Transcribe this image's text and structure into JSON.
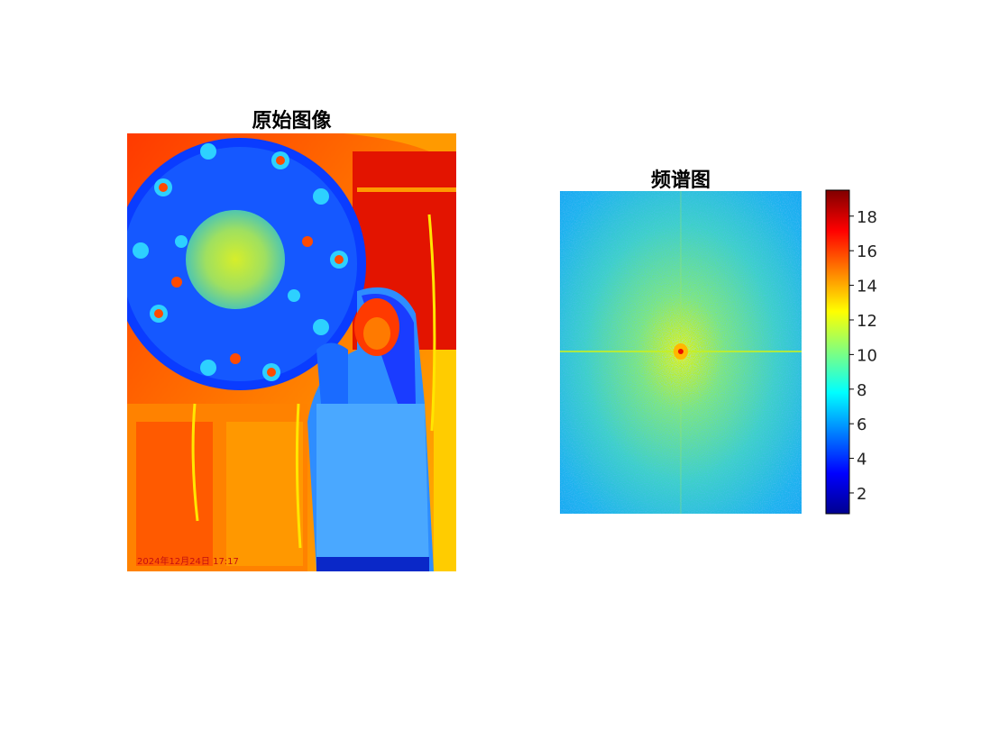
{
  "figure": {
    "left_title": "原始图像",
    "right_title": "频谱图",
    "timestamp": "2024年12月24日 17:17"
  },
  "chart_data": [
    {
      "type": "heatmap",
      "title": "原始图像",
      "colormap": "jet",
      "axes_visible": false
    },
    {
      "type": "heatmap",
      "title": "频谱图",
      "colormap": "jet",
      "axes_visible": false,
      "colorbar": {
        "range": [
          0.8,
          19.5
        ],
        "ticks": [
          2,
          4,
          6,
          8,
          10,
          12,
          14,
          16,
          18
        ],
        "tick_labels": [
          "2",
          "4",
          "6",
          "8",
          "10",
          "12",
          "14",
          "16",
          "18"
        ]
      }
    }
  ]
}
